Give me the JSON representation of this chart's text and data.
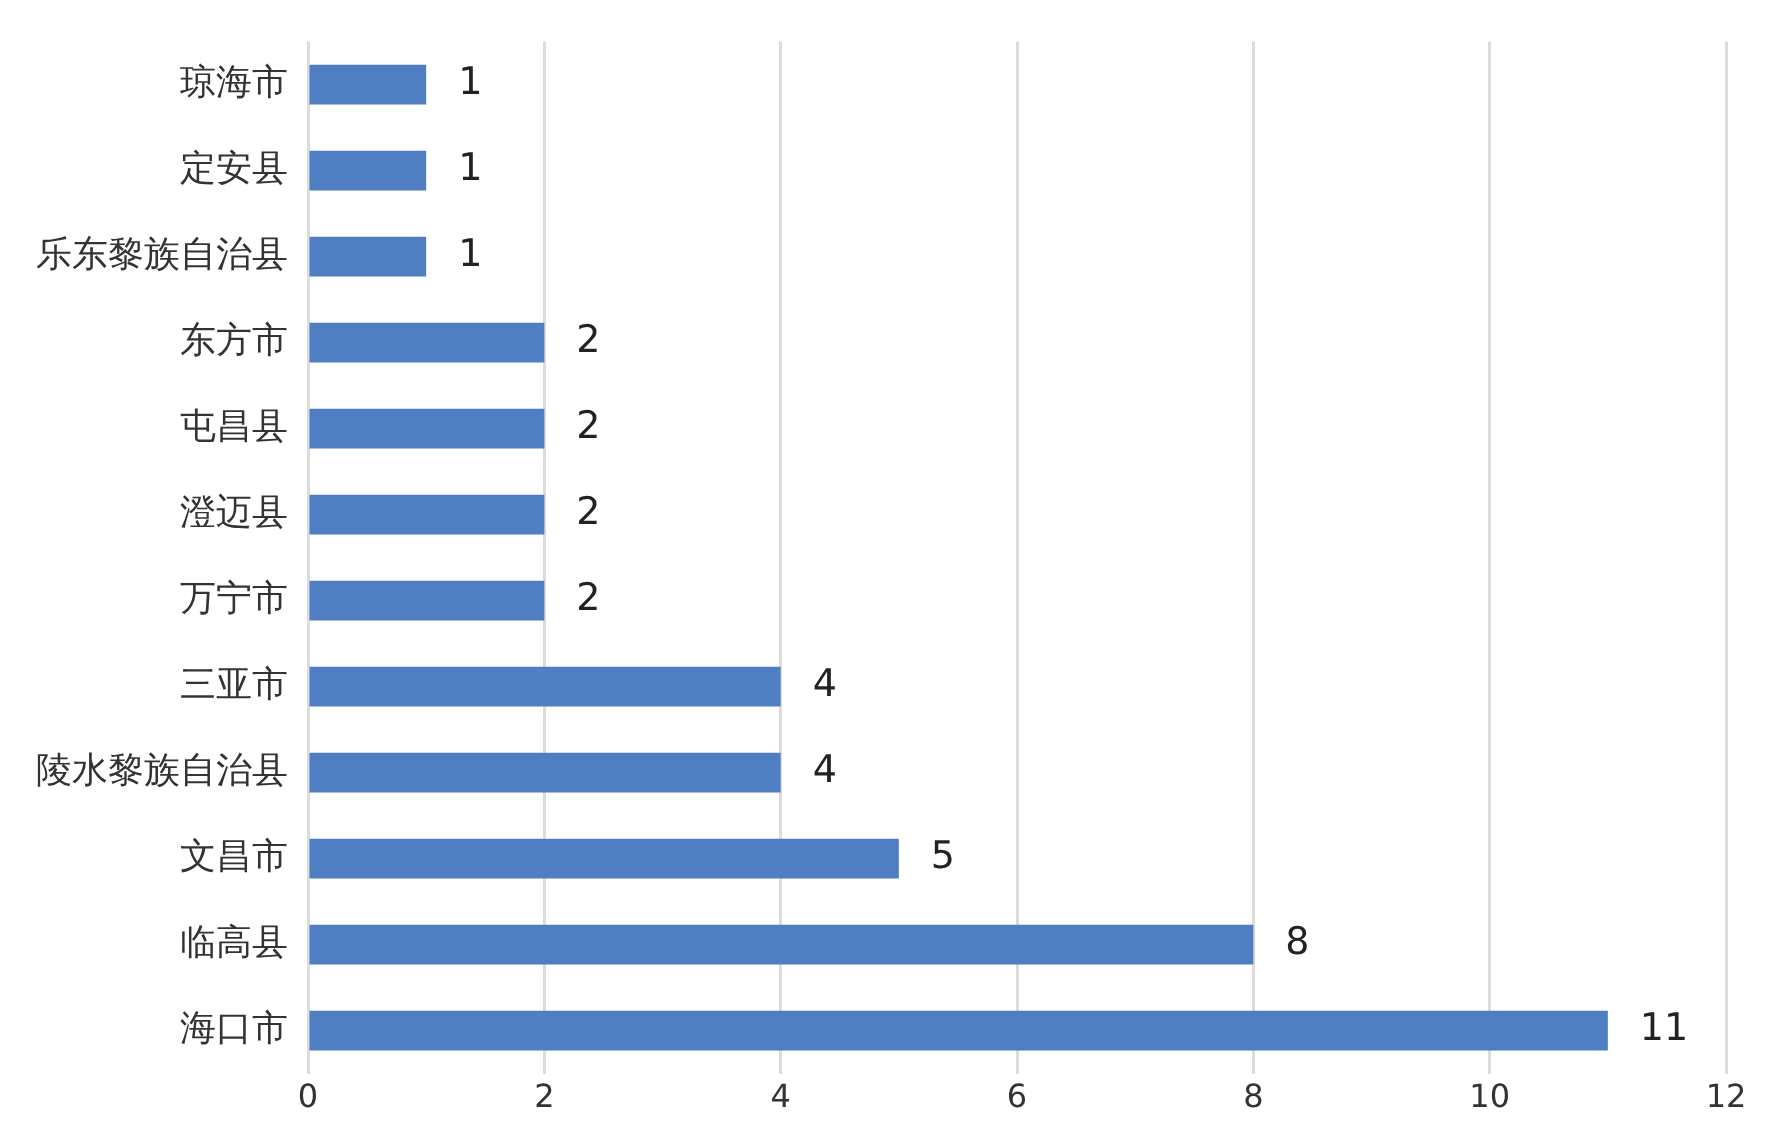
{
  "chart_data": {
    "type": "bar",
    "orientation": "horizontal",
    "categories": [
      "琼海市",
      "定安县",
      "乐东黎族自治县",
      "东方市",
      "屯昌县",
      "澄迈县",
      "万宁市",
      "三亚市",
      "陵水黎族自治县",
      "文昌市",
      "临高县",
      "海口市"
    ],
    "values": [
      1,
      1,
      1,
      2,
      2,
      2,
      2,
      4,
      4,
      5,
      8,
      11
    ],
    "color": "#4f7fc2",
    "xlim": [
      0,
      12
    ],
    "xticks": [
      0,
      2,
      4,
      6,
      8,
      10,
      12
    ],
    "grid": "x",
    "data_labels": true,
    "legend": false
  }
}
